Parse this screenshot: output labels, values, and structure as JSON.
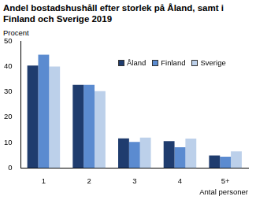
{
  "chart_data": {
    "type": "bar",
    "title": [
      "Andel bostadshushåll efter storlek på Åland, samt i",
      "Finland och Sverige 2019"
    ],
    "y_label": "Procent",
    "x_label": "Antal personer",
    "categories": [
      "1",
      "2",
      "3",
      "4",
      "5+"
    ],
    "series": [
      {
        "name": "Åland",
        "color": "#1f3c6e",
        "values": [
          40.3,
          32.7,
          11.6,
          10.5,
          4.9
        ]
      },
      {
        "name": "Finland",
        "color": "#5b8bd0",
        "values": [
          44.6,
          32.7,
          10.2,
          8.1,
          4.4
        ]
      },
      {
        "name": "Sverige",
        "color": "#bcd0ea",
        "values": [
          39.9,
          30.2,
          11.9,
          11.5,
          6.5
        ]
      }
    ],
    "ylim": [
      0,
      50
    ],
    "yticks": [
      0,
      10,
      20,
      30,
      40,
      50
    ],
    "grid": false,
    "legend": "upper right"
  }
}
